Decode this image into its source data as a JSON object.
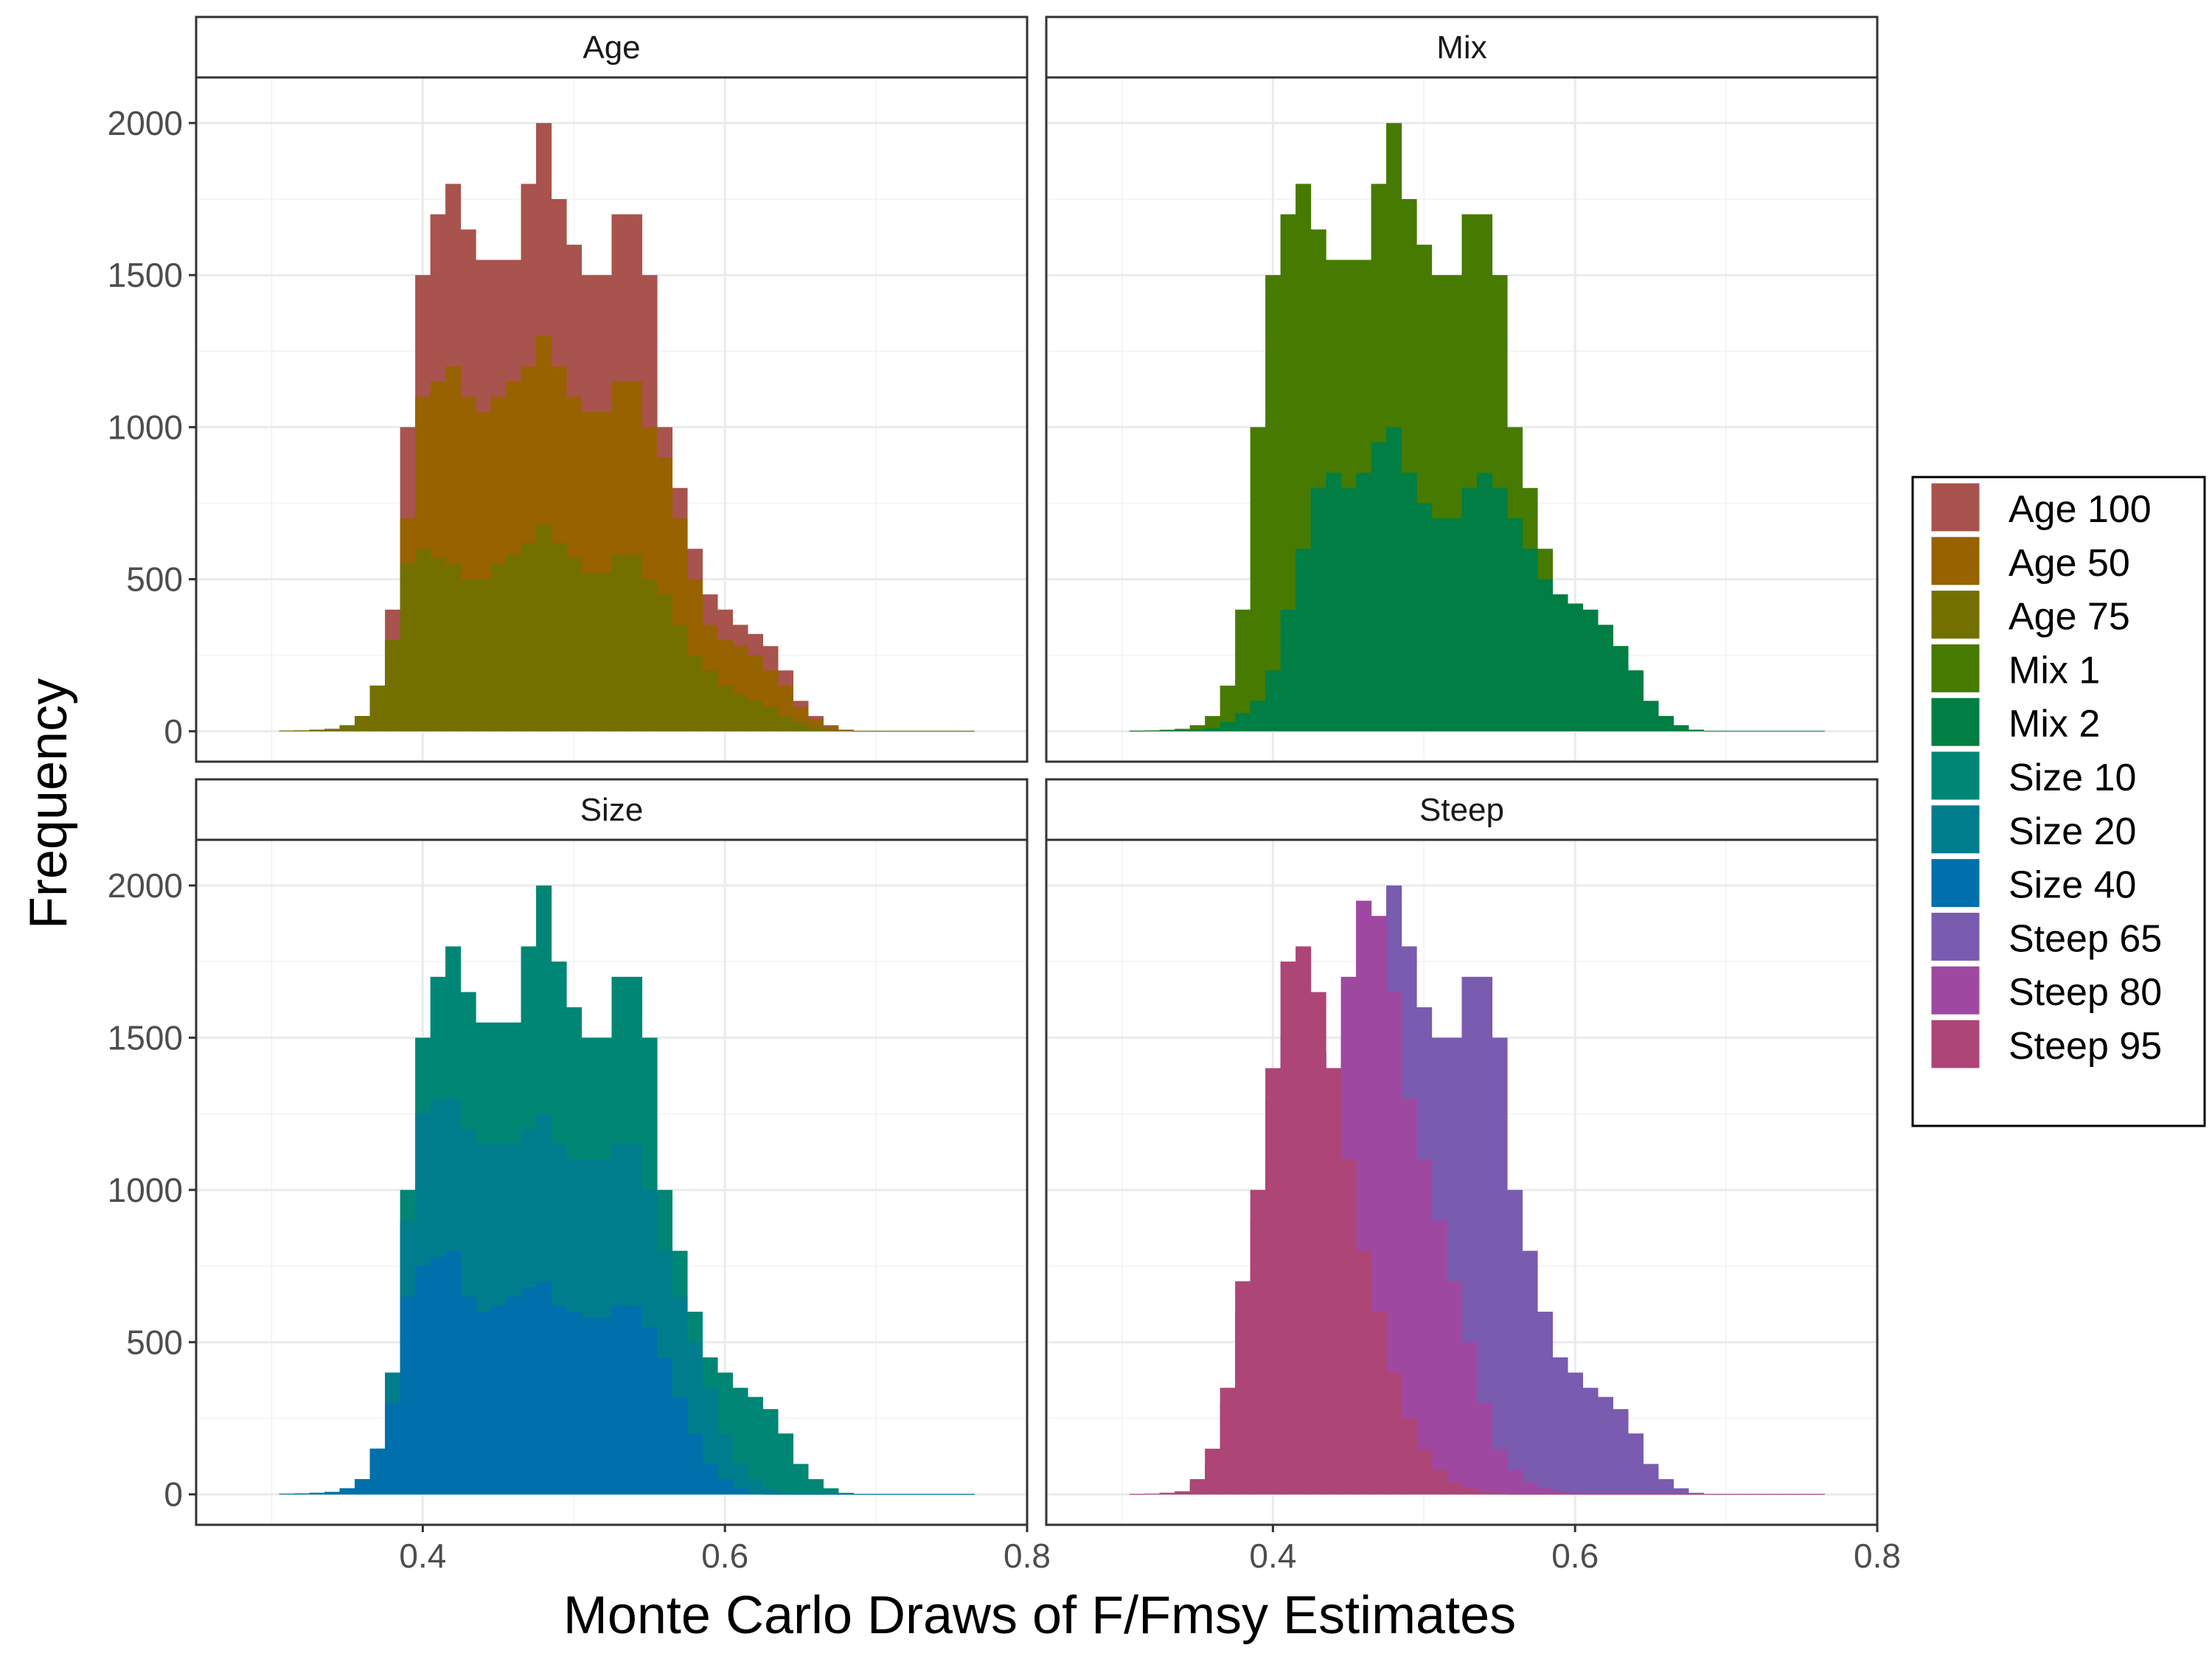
{
  "chart_data": {
    "type": "bar",
    "kind": "faceted_histogram",
    "xlabel": "Monte Carlo Draws of F/Fmsy Estimates",
    "ylabel": "Frequency",
    "xlim": [
      0.25,
      0.8
    ],
    "ylim": [
      -100,
      2150
    ],
    "x_ticks": [
      0.4,
      0.6,
      0.8
    ],
    "y_ticks": [
      0,
      500,
      1000,
      1500,
      2000
    ],
    "grid": true,
    "legend_position": "right",
    "legend": [
      {
        "name": "Age 100",
        "color": "#A8534D"
      },
      {
        "name": "Age 50",
        "color": "#986200"
      },
      {
        "name": "Age 75",
        "color": "#747000"
      },
      {
        "name": "Mix 1",
        "color": "#477A00"
      },
      {
        "name": "Mix 2",
        "color": "#007E44"
      },
      {
        "name": "Size 10",
        "color": "#008675"
      },
      {
        "name": "Size 20",
        "color": "#007D8D"
      },
      {
        "name": "Size 40",
        "color": "#0070AC"
      },
      {
        "name": "Steep 65",
        "color": "#795BB0"
      },
      {
        "name": "Steep 80",
        "color": "#9F48A1"
      },
      {
        "name": "Steep 95",
        "color": "#AD4576"
      }
    ],
    "x_binned": [
      0.31,
      0.32,
      0.33,
      0.34,
      0.35,
      0.36,
      0.37,
      0.38,
      0.39,
      0.4,
      0.41,
      0.42,
      0.43,
      0.44,
      0.45,
      0.46,
      0.47,
      0.48,
      0.49,
      0.5,
      0.51,
      0.52,
      0.53,
      0.54,
      0.55,
      0.56,
      0.57,
      0.58,
      0.59,
      0.6,
      0.61,
      0.62,
      0.63,
      0.64,
      0.65,
      0.66,
      0.67,
      0.68,
      0.69,
      0.7,
      0.71,
      0.72,
      0.73,
      0.74,
      0.75,
      0.76
    ],
    "bin_width": 0.01,
    "facets": [
      {
        "strip": "Age",
        "series": [
          {
            "name": "Age 100",
            "color": "#A8534D",
            "values": [
              2,
              3,
              5,
              8,
              20,
              50,
              150,
              400,
              1000,
              1500,
              1700,
              1800,
              1650,
              1550,
              1550,
              1550,
              1800,
              2000,
              1750,
              1600,
              1500,
              1500,
              1700,
              1700,
              1500,
              1000,
              800,
              600,
              450,
              400,
              350,
              320,
              280,
              200,
              100,
              50,
              20,
              5,
              1,
              1,
              1,
              1,
              1,
              1,
              1,
              1
            ]
          },
          {
            "name": "Age 50",
            "color": "#986200",
            "values": [
              2,
              3,
              5,
              8,
              20,
              50,
              150,
              300,
              700,
              1100,
              1150,
              1200,
              1100,
              1050,
              1100,
              1150,
              1200,
              1300,
              1200,
              1100,
              1050,
              1050,
              1150,
              1150,
              1000,
              900,
              700,
              500,
              350,
              300,
              280,
              250,
              200,
              150,
              80,
              40,
              15,
              5,
              1,
              1,
              1,
              1,
              1,
              1,
              1,
              1
            ]
          },
          {
            "name": "Age 75",
            "color": "#747000",
            "values": [
              2,
              3,
              5,
              8,
              20,
              50,
              150,
              300,
              550,
              600,
              570,
              550,
              500,
              500,
              550,
              580,
              620,
              680,
              620,
              570,
              520,
              520,
              580,
              580,
              500,
              450,
              350,
              250,
              200,
              150,
              120,
              100,
              80,
              50,
              30,
              15,
              5,
              2,
              1,
              1,
              1,
              1,
              1,
              1,
              1,
              1
            ]
          }
        ]
      },
      {
        "strip": "Mix",
        "series": [
          {
            "name": "Mix 1",
            "color": "#477A00",
            "values": [
              2,
              3,
              5,
              8,
              20,
              50,
              150,
              400,
              1000,
              1500,
              1700,
              1800,
              1650,
              1550,
              1550,
              1550,
              1800,
              2000,
              1750,
              1600,
              1500,
              1500,
              1700,
              1700,
              1500,
              1000,
              800,
              600,
              450,
              400,
              350,
              320,
              280,
              200,
              100,
              50,
              20,
              5,
              1,
              1,
              1,
              1,
              1,
              1,
              1,
              1
            ]
          },
          {
            "name": "Mix 2",
            "color": "#007E44",
            "values": [
              1,
              2,
              3,
              4,
              5,
              10,
              30,
              60,
              100,
              200,
              400,
              600,
              800,
              850,
              800,
              850,
              950,
              1000,
              850,
              750,
              700,
              700,
              800,
              850,
              800,
              700,
              600,
              500,
              450,
              420,
              400,
              350,
              280,
              200,
              100,
              50,
              20,
              5,
              1,
              1,
              1,
              1,
              1,
              1,
              1,
              1
            ]
          }
        ]
      },
      {
        "strip": "Size",
        "series": [
          {
            "name": "Size 10",
            "color": "#008675",
            "values": [
              2,
              3,
              5,
              8,
              20,
              50,
              150,
              400,
              1000,
              1500,
              1700,
              1800,
              1650,
              1550,
              1550,
              1550,
              1800,
              2000,
              1750,
              1600,
              1500,
              1500,
              1700,
              1700,
              1500,
              1000,
              800,
              600,
              450,
              400,
              350,
              320,
              280,
              200,
              100,
              50,
              20,
              5,
              1,
              1,
              1,
              1,
              1,
              1,
              1,
              1
            ]
          },
          {
            "name": "Size 20",
            "color": "#007D8D",
            "values": [
              2,
              3,
              5,
              8,
              20,
              50,
              150,
              400,
              900,
              1250,
              1300,
              1300,
              1200,
              1150,
              1150,
              1150,
              1200,
              1250,
              1150,
              1100,
              1100,
              1100,
              1150,
              1150,
              1000,
              800,
              650,
              500,
              350,
              200,
              100,
              50,
              20,
              5,
              1,
              1,
              1,
              1,
              1,
              1,
              1,
              1,
              1,
              1,
              1,
              1
            ]
          },
          {
            "name": "Size 40",
            "color": "#0070AC",
            "values": [
              2,
              3,
              5,
              8,
              20,
              50,
              150,
              300,
              650,
              750,
              780,
              800,
              650,
              600,
              620,
              650,
              680,
              700,
              620,
              600,
              580,
              580,
              620,
              620,
              550,
              450,
              320,
              200,
              100,
              50,
              20,
              5,
              1,
              1,
              1,
              1,
              1,
              1,
              1,
              1,
              1,
              1,
              1,
              1,
              1,
              1
            ]
          }
        ]
      },
      {
        "strip": "Steep",
        "series": [
          {
            "name": "Steep 65",
            "color": "#795BB0",
            "values": [
              1,
              2,
              3,
              4,
              10,
              30,
              100,
              300,
              650,
              1100,
              1400,
              1500,
              1450,
              1400,
              1500,
              1600,
              1800,
              2000,
              1800,
              1600,
              1500,
              1500,
              1700,
              1700,
              1500,
              1000,
              800,
              600,
              450,
              400,
              350,
              320,
              280,
              200,
              100,
              50,
              20,
              5,
              1,
              1,
              1,
              1,
              1,
              1,
              1,
              1
            ]
          },
          {
            "name": "Steep 80",
            "color": "#9F48A1",
            "values": [
              1,
              2,
              5,
              10,
              30,
              100,
              300,
              600,
              900,
              1300,
              1500,
              1550,
              1450,
              1400,
              1700,
              1950,
              1900,
              1650,
              1300,
              1100,
              900,
              700,
              500,
              300,
              150,
              80,
              40,
              20,
              10,
              5,
              1,
              1,
              1,
              1,
              1,
              1,
              1,
              1,
              1,
              1,
              1,
              1,
              1,
              1,
              1,
              1
            ]
          },
          {
            "name": "Steep 95",
            "color": "#AD4576",
            "values": [
              1,
              2,
              5,
              10,
              50,
              150,
              350,
              700,
              1000,
              1400,
              1750,
              1800,
              1650,
              1400,
              1100,
              800,
              600,
              400,
              250,
              150,
              80,
              40,
              20,
              10,
              5,
              1,
              1,
              1,
              1,
              1,
              1,
              1,
              1,
              1,
              1,
              1,
              1,
              1,
              1,
              1,
              1,
              1,
              1,
              1,
              1,
              1
            ]
          }
        ]
      }
    ]
  }
}
